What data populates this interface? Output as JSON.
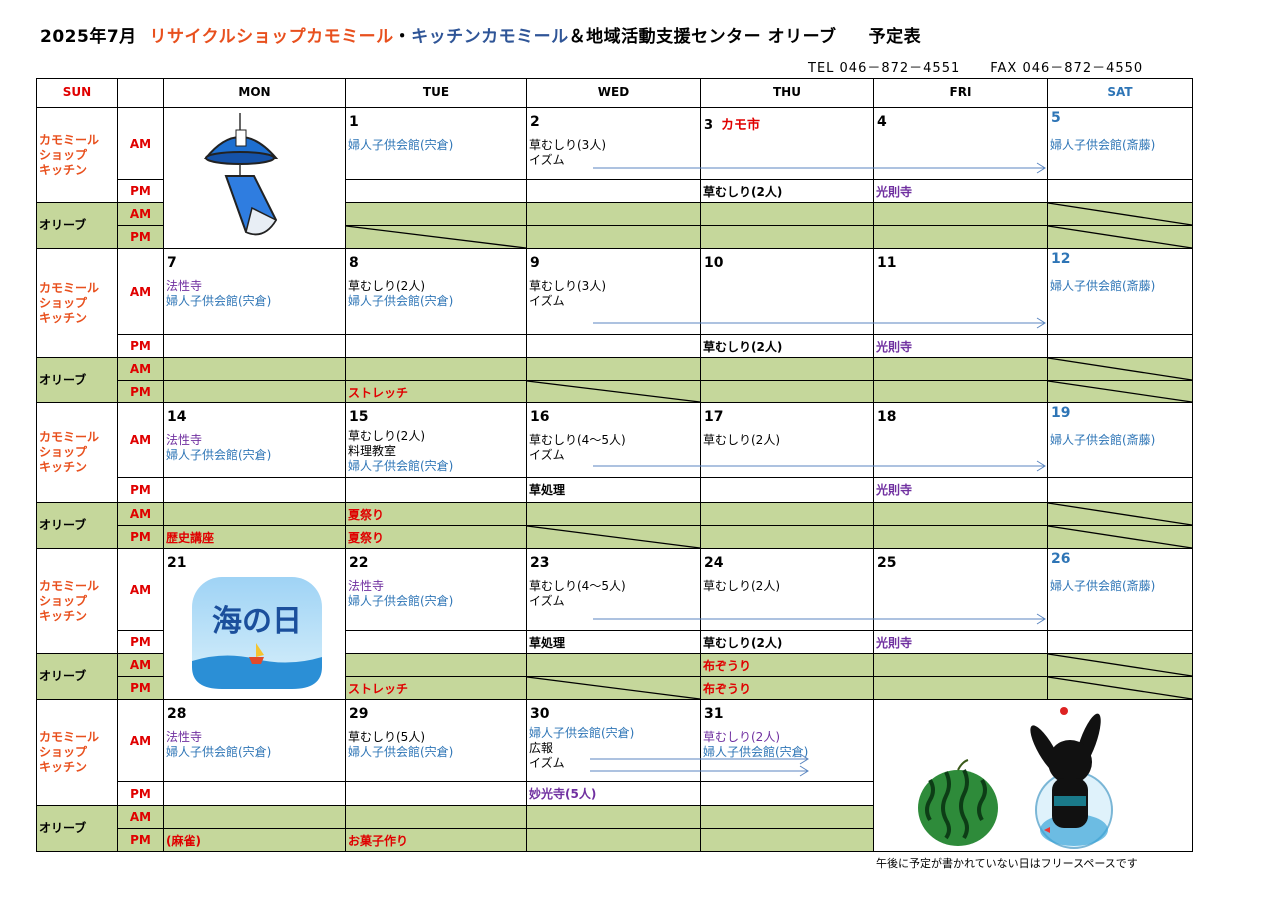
{
  "header": {
    "year_month": "2025年7月",
    "shop_name": "リサイクルショップカモミール",
    "separator": "・",
    "kitchen_name": "キッチンカモミール",
    "center_name": "＆地域活動支援センター オリーブ",
    "doc_title": "予定表",
    "tel": "TEL 046－872－4551",
    "fax": "FAX 046－872－4550"
  },
  "colors": {
    "red": "#e00000",
    "orange": "#e8501e",
    "blue": "#2e75b6",
    "navy": "#2f5597",
    "purple": "#7030a0",
    "olive_bg": "#c5d79b",
    "black": "#000000"
  },
  "days": [
    "SUN",
    "MON",
    "TUE",
    "WED",
    "THU",
    "FRI",
    "SAT"
  ],
  "categories": {
    "chamomile": "カモミール\nショップ\nキッチン",
    "olive": "オリーブ",
    "am": "AM",
    "pm": "PM"
  },
  "images": {
    "umi_no_hi": "海の日",
    "wind_chime": "wind-chime-illustration",
    "summer": "watermelon-and-rabbit-goldfish-bowl-illustration"
  },
  "weeks": [
    {
      "cells": [
        {
          "image": "wind_chime"
        },
        {
          "date": "1",
          "am": [
            {
              "t": "婦人子供会館(宍倉)",
              "c": "blue"
            }
          ],
          "opm_slash": true
        },
        {
          "date": "2",
          "am": [
            {
              "t": "草むしり(3人)",
              "c": "black"
            },
            {
              "t": "イズム",
              "c": "black"
            }
          ]
        },
        {
          "date": "3",
          "date_note": "カモ市",
          "pm": [
            {
              "t": "草むしり(2人)",
              "c": "black"
            }
          ]
        },
        {
          "date": "4",
          "pm": [
            {
              "t": "光則寺",
              "c": "purple"
            }
          ]
        },
        {
          "date": "5",
          "date_color": "blue",
          "am": [
            {
              "t": "婦人子供会館(斎藤)",
              "c": "blue"
            }
          ],
          "oam_slash": true,
          "opm_slash": true
        }
      ],
      "arrows": 1
    },
    {
      "cells": [
        {
          "date": "7",
          "am": [
            {
              "t": "法性寺",
              "c": "purple"
            },
            {
              "t": "婦人子供会館(宍倉)",
              "c": "blue"
            }
          ]
        },
        {
          "date": "8",
          "am": [
            {
              "t": "草むしり(2人)",
              "c": "black"
            },
            {
              "t": "婦人子供会館(宍倉)",
              "c": "blue"
            }
          ],
          "opm": [
            {
              "t": "ストレッチ",
              "c": "red"
            }
          ]
        },
        {
          "date": "9",
          "am": [
            {
              "t": "草むしり(3人)",
              "c": "black"
            },
            {
              "t": "イズム",
              "c": "black"
            }
          ],
          "opm_slash": true
        },
        {
          "date": "10",
          "pm": [
            {
              "t": "草むしり(2人)",
              "c": "black"
            }
          ]
        },
        {
          "date": "11",
          "pm": [
            {
              "t": "光則寺",
              "c": "purple"
            }
          ]
        },
        {
          "date": "12",
          "date_color": "blue",
          "am": [
            {
              "t": "婦人子供会館(斎藤)",
              "c": "blue"
            }
          ],
          "oam_slash": true,
          "opm_slash": true
        }
      ],
      "arrows": 1
    },
    {
      "cells": [
        {
          "date": "14",
          "am": [
            {
              "t": "法性寺",
              "c": "purple"
            },
            {
              "t": "婦人子供会館(宍倉)",
              "c": "blue"
            }
          ],
          "opm": [
            {
              "t": "歴史講座",
              "c": "red"
            }
          ]
        },
        {
          "date": "15",
          "am": [
            {
              "t": "草むしり(2人)",
              "c": "black"
            },
            {
              "t": "料理教室",
              "c": "black"
            },
            {
              "t": "婦人子供会館(宍倉)",
              "c": "blue"
            }
          ],
          "oam": [
            {
              "t": "夏祭り",
              "c": "red"
            }
          ],
          "opm": [
            {
              "t": "夏祭り",
              "c": "red"
            }
          ]
        },
        {
          "date": "16",
          "am": [
            {
              "t": "草むしり(4～5人)",
              "c": "black"
            },
            {
              "t": "イズム",
              "c": "black"
            }
          ],
          "pm": [
            {
              "t": "草処理",
              "c": "black"
            }
          ],
          "opm_slash": true
        },
        {
          "date": "17",
          "am": [
            {
              "t": "草むしり(2人)",
              "c": "black"
            }
          ]
        },
        {
          "date": "18",
          "pm": [
            {
              "t": "光則寺",
              "c": "purple"
            }
          ]
        },
        {
          "date": "19",
          "date_color": "blue",
          "am": [
            {
              "t": "婦人子供会館(斎藤)",
              "c": "blue"
            }
          ],
          "oam_slash": true,
          "opm_slash": true
        }
      ],
      "arrows": 1
    },
    {
      "cells": [
        {
          "date": "21",
          "image": "umi_no_hi"
        },
        {
          "date": "22",
          "am": [
            {
              "t": "法性寺",
              "c": "purple"
            },
            {
              "t": "婦人子供会館(宍倉)",
              "c": "blue"
            }
          ],
          "opm": [
            {
              "t": "ストレッチ",
              "c": "red"
            }
          ]
        },
        {
          "date": "23",
          "am": [
            {
              "t": "草むしり(4～5人)",
              "c": "black"
            },
            {
              "t": "イズム",
              "c": "black"
            }
          ],
          "pm": [
            {
              "t": "草処理",
              "c": "black"
            }
          ],
          "opm_slash": true
        },
        {
          "date": "24",
          "am": [
            {
              "t": "草むしり(2人)",
              "c": "black"
            }
          ],
          "pm": [
            {
              "t": "草むしり(2人)",
              "c": "black"
            }
          ],
          "oam": [
            {
              "t": "布ぞうり",
              "c": "red"
            }
          ],
          "opm": [
            {
              "t": "布ぞうり",
              "c": "red"
            }
          ]
        },
        {
          "date": "25",
          "pm": [
            {
              "t": "光則寺",
              "c": "purple"
            }
          ]
        },
        {
          "date": "26",
          "date_color": "blue",
          "am": [
            {
              "t": "婦人子供会館(斎藤)",
              "c": "blue"
            }
          ],
          "oam_slash": true,
          "opm_slash": true
        }
      ],
      "arrows": 1
    },
    {
      "cells": [
        {
          "date": "28",
          "am": [
            {
              "t": "法性寺",
              "c": "purple"
            },
            {
              "t": "婦人子供会館(宍倉)",
              "c": "blue"
            }
          ],
          "opm": [
            {
              "t": "(麻雀)",
              "c": "red"
            }
          ]
        },
        {
          "date": "29",
          "am": [
            {
              "t": "草むしり(5人)",
              "c": "black"
            },
            {
              "t": "婦人子供会館(宍倉)",
              "c": "blue"
            }
          ],
          "opm": [
            {
              "t": "お菓子作り",
              "c": "red"
            }
          ]
        },
        {
          "date": "30",
          "am": [
            {
              "t": "婦人子供会館(宍倉)",
              "c": "blue"
            },
            {
              "t": "広報",
              "c": "black"
            },
            {
              "t": "イズム",
              "c": "black"
            }
          ],
          "pm": [
            {
              "t": "妙光寺(5人)",
              "c": "purple"
            }
          ]
        },
        {
          "date": "31",
          "am": [
            {
              "t": "草むしり(2人)",
              "c": "purple"
            },
            {
              "t": "婦人子供会館(宍倉)",
              "c": "blue"
            }
          ]
        },
        {
          "image": "summer"
        },
        {
          "merged": true
        }
      ],
      "arrows": 2
    }
  ],
  "footer_note": "午後に予定が書かれていない日はフリースペースです"
}
